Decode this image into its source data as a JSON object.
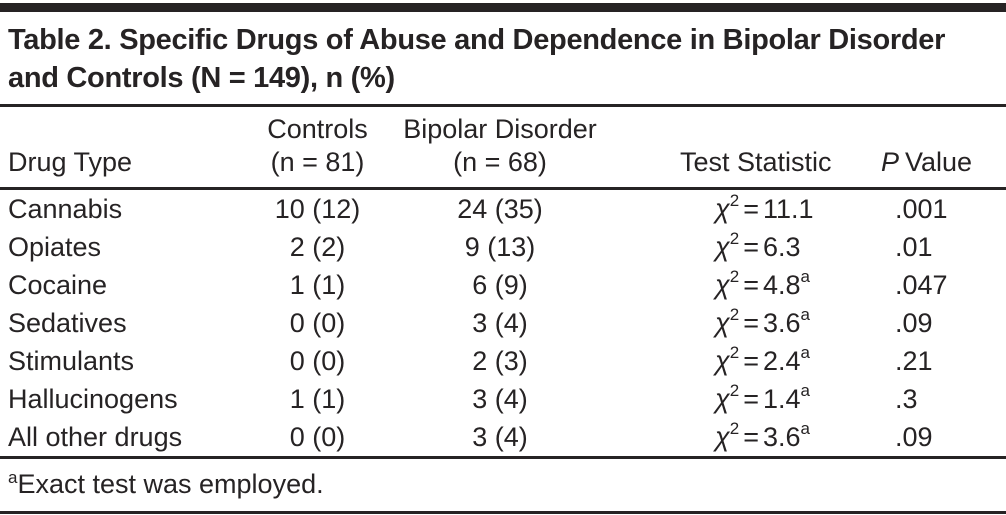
{
  "title": "Table 2. Specific Drugs of Abuse and Dependence in Bipolar Disorder and Controls (N = 149), n (%)",
  "columns": {
    "drug_type": "Drug Type",
    "controls_line1": "Controls",
    "controls_line2": "(n = 81)",
    "bipolar_line1": "Bipolar Disorder",
    "bipolar_line2": "(n = 68)",
    "test_statistic": "Test Statistic",
    "p_value_italic": "P",
    "p_value_rest": "Value"
  },
  "chi_symbol": "χ",
  "chi_exponent": "2",
  "equals_sign": "=",
  "rows": [
    {
      "drug": "Cannabis",
      "controls": "10 (12)",
      "bipolar": "24 (35)",
      "chi": "11.1",
      "exact": false,
      "p": ".001"
    },
    {
      "drug": "Opiates",
      "controls": "2 (2)",
      "bipolar": "9 (13)",
      "chi": "6.3",
      "exact": false,
      "p": ".01"
    },
    {
      "drug": "Cocaine",
      "controls": "1 (1)",
      "bipolar": "6 (9)",
      "chi": "4.8",
      "exact": true,
      "p": ".047"
    },
    {
      "drug": "Sedatives",
      "controls": "0 (0)",
      "bipolar": "3 (4)",
      "chi": "3.6",
      "exact": true,
      "p": ".09"
    },
    {
      "drug": "Stimulants",
      "controls": "0 (0)",
      "bipolar": "2 (3)",
      "chi": "2.4",
      "exact": true,
      "p": ".21"
    },
    {
      "drug": "Hallucinogens",
      "controls": "1 (1)",
      "bipolar": "3 (4)",
      "chi": "1.4",
      "exact": true,
      "p": ".3"
    },
    {
      "drug": "All other drugs",
      "controls": "0 (0)",
      "bipolar": "3 (4)",
      "chi": "3.6",
      "exact": true,
      "p": ".09"
    }
  ],
  "footnote": {
    "marker": "a",
    "text": "Exact test was employed."
  },
  "colors": {
    "text": "#262324",
    "rule": "#262324",
    "background": "#ffffff"
  }
}
